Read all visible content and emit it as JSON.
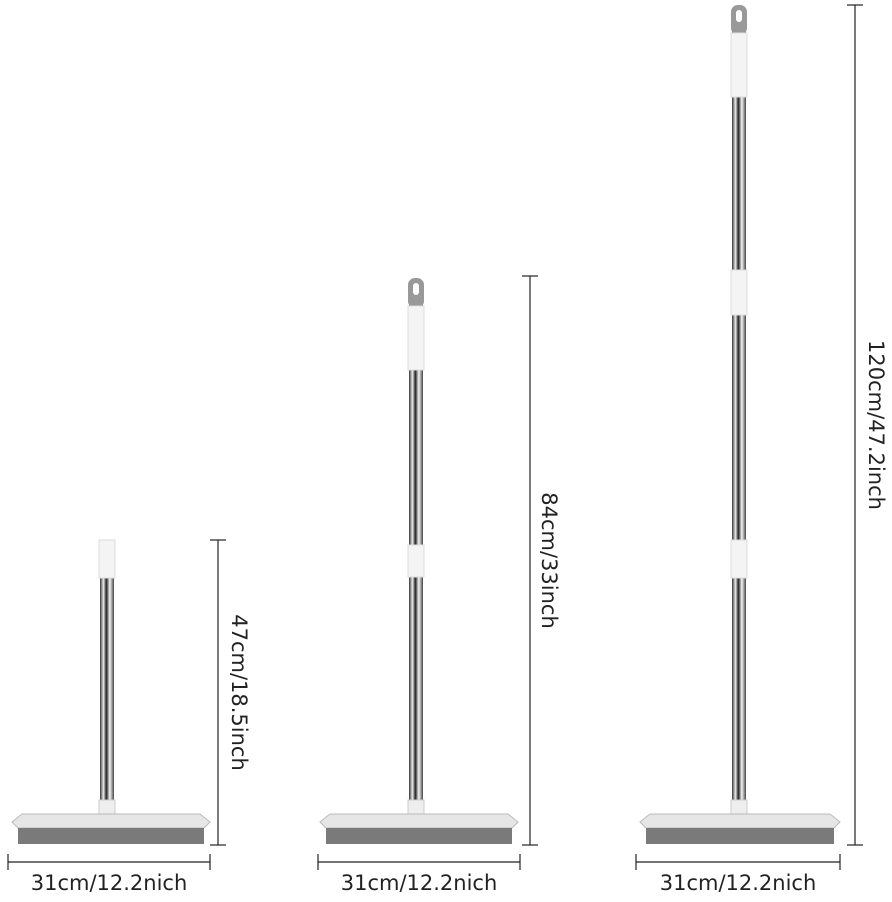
{
  "brooms": [
    {
      "height_label": "47cm/18.5inch",
      "width_label": "31cm/12.2nich"
    },
    {
      "height_label": "84cm/33inch",
      "width_label": "31cm/12.2nich"
    },
    {
      "height_label": "120cm/47.2inch",
      "width_label": "31cm/12.2nich"
    }
  ]
}
